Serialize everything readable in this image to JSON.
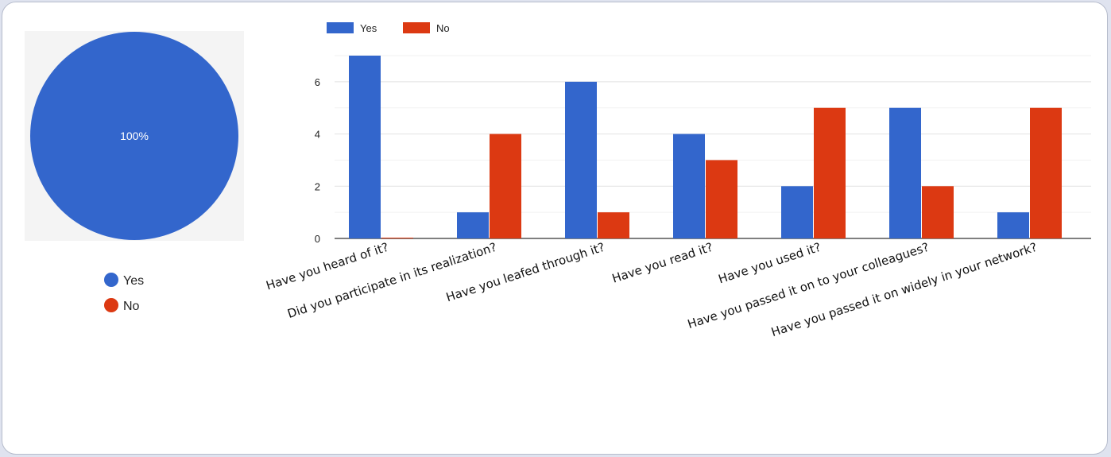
{
  "chart_data": [
    {
      "type": "pie",
      "labels": [
        "Yes",
        "No"
      ],
      "values": [
        100,
        0
      ],
      "slice_label": "100%",
      "colors": [
        "#3366cc",
        "#dc3912"
      ],
      "legend_position": "bottom"
    },
    {
      "type": "bar",
      "categories": [
        "Have you heard of it?",
        "Did you participate in its realization?",
        "Have you leafed through it?",
        "Have you read it?",
        "Have you used it?",
        "Have you passed it on to your colleagues?",
        "Have you passed it on widely in your network?"
      ],
      "series": [
        {
          "name": "Yes",
          "color": "#3366cc",
          "values": [
            7,
            1,
            6,
            4,
            2,
            5,
            1
          ]
        },
        {
          "name": "No",
          "color": "#dc3912",
          "values": [
            0,
            4,
            1,
            3,
            5,
            2,
            5
          ]
        }
      ],
      "ylim": [
        0,
        7
      ],
      "yticks": [
        0,
        2,
        4,
        6
      ],
      "grid": true,
      "legend_position": "top-left",
      "xlabel": "",
      "ylabel": ""
    }
  ]
}
